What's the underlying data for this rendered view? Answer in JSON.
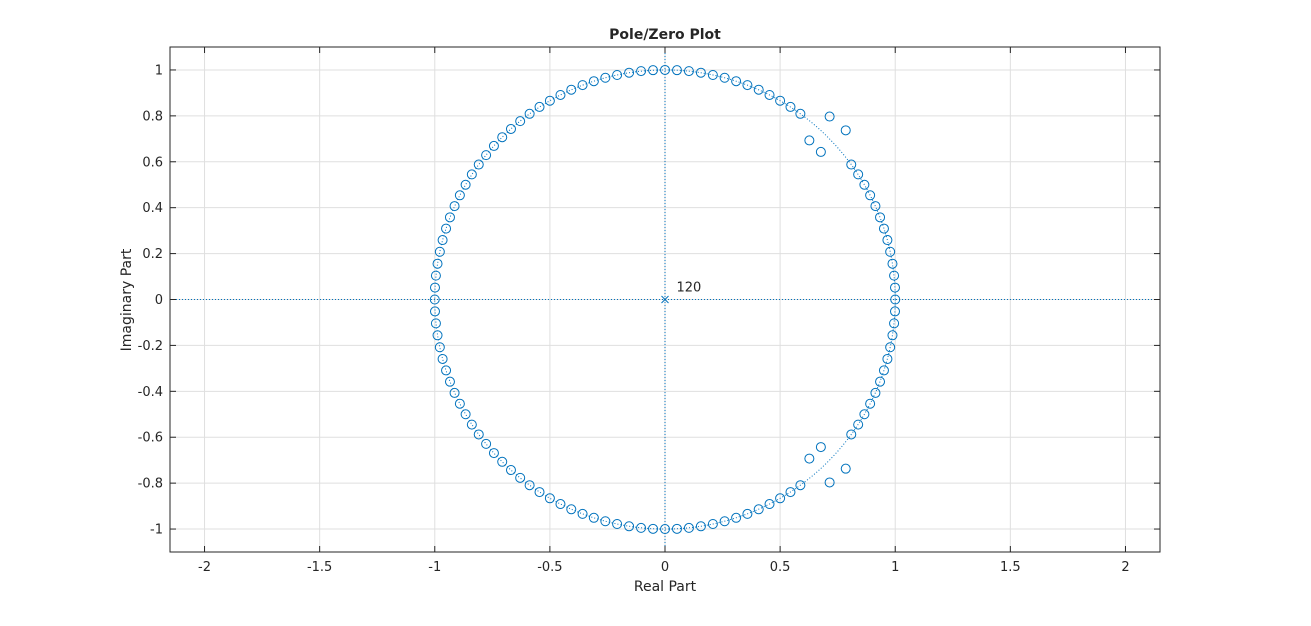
{
  "chart_data": {
    "type": "scatter",
    "title": "Pole/Zero Plot",
    "xlabel": "Real Part",
    "ylabel": "Imaginary Part",
    "xlim": [
      -2.15,
      2.15
    ],
    "ylim": [
      -1.1,
      1.1
    ],
    "xticks": [
      -2,
      -1.5,
      -1,
      -0.5,
      0,
      0.5,
      1,
      1.5,
      2
    ],
    "xtick_labels": [
      "-2",
      "-1.5",
      "-1",
      "-0.5",
      "0",
      "0.5",
      "1",
      "1.5",
      "2"
    ],
    "yticks": [
      -1,
      -0.8,
      -0.6,
      -0.4,
      -0.2,
      0,
      0.2,
      0.4,
      0.6,
      0.8,
      1
    ],
    "ytick_labels": [
      "-1",
      "-0.8",
      "-0.6",
      "-0.4",
      "-0.2",
      "0",
      "0.2",
      "0.4",
      "0.6",
      "0.8",
      "1"
    ],
    "grid": true,
    "unit_circle": true,
    "marker_color": "#0072BD",
    "series": [
      {
        "marker": "o",
        "points": [
          {
            "x": 0.052,
            "y": 0.999
          },
          {
            "x": 0.104,
            "y": 0.995
          },
          {
            "x": 0.156,
            "y": 0.988
          },
          {
            "x": 0.208,
            "y": 0.978
          },
          {
            "x": 0.259,
            "y": 0.966
          },
          {
            "x": 0.309,
            "y": 0.951
          },
          {
            "x": 0.358,
            "y": 0.934
          },
          {
            "x": 0.407,
            "y": 0.914
          },
          {
            "x": 0.454,
            "y": 0.891
          },
          {
            "x": 0.5,
            "y": 0.866
          },
          {
            "x": 0.545,
            "y": 0.839
          },
          {
            "x": 0.588,
            "y": 0.809
          },
          {
            "x": 0.809,
            "y": 0.588
          },
          {
            "x": 0.839,
            "y": 0.545
          },
          {
            "x": 0.866,
            "y": 0.5
          },
          {
            "x": 0.891,
            "y": 0.454
          },
          {
            "x": 0.914,
            "y": 0.407
          },
          {
            "x": 0.934,
            "y": 0.358
          },
          {
            "x": 0.951,
            "y": 0.309
          },
          {
            "x": 0.966,
            "y": 0.259
          },
          {
            "x": 0.978,
            "y": 0.208
          },
          {
            "x": 0.988,
            "y": 0.156
          },
          {
            "x": 0.995,
            "y": 0.104
          },
          {
            "x": 0.999,
            "y": 0.052
          },
          {
            "x": 1.0,
            "y": 0.0
          },
          {
            "x": 0.999,
            "y": -0.052
          },
          {
            "x": 0.995,
            "y": -0.104
          },
          {
            "x": 0.988,
            "y": -0.156
          },
          {
            "x": 0.978,
            "y": -0.208
          },
          {
            "x": 0.966,
            "y": -0.259
          },
          {
            "x": 0.951,
            "y": -0.309
          },
          {
            "x": 0.934,
            "y": -0.358
          },
          {
            "x": 0.914,
            "y": -0.407
          },
          {
            "x": 0.891,
            "y": -0.454
          },
          {
            "x": 0.866,
            "y": -0.5
          },
          {
            "x": 0.839,
            "y": -0.545
          },
          {
            "x": 0.809,
            "y": -0.588
          },
          {
            "x": 0.588,
            "y": -0.809
          },
          {
            "x": 0.545,
            "y": -0.839
          },
          {
            "x": 0.5,
            "y": -0.866
          },
          {
            "x": 0.454,
            "y": -0.891
          },
          {
            "x": 0.407,
            "y": -0.914
          },
          {
            "x": 0.358,
            "y": -0.934
          },
          {
            "x": 0.309,
            "y": -0.951
          },
          {
            "x": 0.259,
            "y": -0.966
          },
          {
            "x": 0.208,
            "y": -0.978
          },
          {
            "x": 0.156,
            "y": -0.988
          },
          {
            "x": 0.104,
            "y": -0.995
          },
          {
            "x": 0.052,
            "y": -0.999
          },
          {
            "x": 0.0,
            "y": -1.0
          },
          {
            "x": -0.052,
            "y": -0.999
          },
          {
            "x": -0.104,
            "y": -0.995
          },
          {
            "x": -0.156,
            "y": -0.988
          },
          {
            "x": -0.208,
            "y": -0.978
          },
          {
            "x": -0.259,
            "y": -0.966
          },
          {
            "x": -0.309,
            "y": -0.951
          },
          {
            "x": -0.358,
            "y": -0.934
          },
          {
            "x": -0.407,
            "y": -0.914
          },
          {
            "x": -0.454,
            "y": -0.891
          },
          {
            "x": -0.5,
            "y": -0.866
          },
          {
            "x": -0.545,
            "y": -0.839
          },
          {
            "x": -0.588,
            "y": -0.809
          },
          {
            "x": -0.629,
            "y": -0.777
          },
          {
            "x": -0.669,
            "y": -0.743
          },
          {
            "x": -0.707,
            "y": -0.707
          },
          {
            "x": -0.743,
            "y": -0.669
          },
          {
            "x": -0.777,
            "y": -0.629
          },
          {
            "x": -0.809,
            "y": -0.588
          },
          {
            "x": -0.839,
            "y": -0.545
          },
          {
            "x": -0.866,
            "y": -0.5
          },
          {
            "x": -0.891,
            "y": -0.454
          },
          {
            "x": -0.914,
            "y": -0.407
          },
          {
            "x": -0.934,
            "y": -0.358
          },
          {
            "x": -0.951,
            "y": -0.309
          },
          {
            "x": -0.966,
            "y": -0.259
          },
          {
            "x": -0.978,
            "y": -0.208
          },
          {
            "x": -0.988,
            "y": -0.156
          },
          {
            "x": -0.995,
            "y": -0.104
          },
          {
            "x": -0.999,
            "y": -0.052
          },
          {
            "x": -1.0,
            "y": 0.0
          },
          {
            "x": -0.999,
            "y": 0.052
          },
          {
            "x": -0.995,
            "y": 0.104
          },
          {
            "x": -0.988,
            "y": 0.156
          },
          {
            "x": -0.978,
            "y": 0.208
          },
          {
            "x": -0.966,
            "y": 0.259
          },
          {
            "x": -0.951,
            "y": 0.309
          },
          {
            "x": -0.934,
            "y": 0.358
          },
          {
            "x": -0.914,
            "y": 0.407
          },
          {
            "x": -0.891,
            "y": 0.454
          },
          {
            "x": -0.866,
            "y": 0.5
          },
          {
            "x": -0.839,
            "y": 0.545
          },
          {
            "x": -0.809,
            "y": 0.588
          },
          {
            "x": -0.777,
            "y": 0.629
          },
          {
            "x": -0.743,
            "y": 0.669
          },
          {
            "x": -0.707,
            "y": 0.707
          },
          {
            "x": -0.669,
            "y": 0.743
          },
          {
            "x": -0.629,
            "y": 0.777
          },
          {
            "x": -0.588,
            "y": 0.809
          },
          {
            "x": -0.545,
            "y": 0.839
          },
          {
            "x": -0.5,
            "y": 0.866
          },
          {
            "x": -0.454,
            "y": 0.891
          },
          {
            "x": -0.407,
            "y": 0.914
          },
          {
            "x": -0.358,
            "y": 0.934
          },
          {
            "x": -0.309,
            "y": 0.951
          },
          {
            "x": -0.259,
            "y": 0.966
          },
          {
            "x": -0.208,
            "y": 0.978
          },
          {
            "x": -0.156,
            "y": 0.988
          },
          {
            "x": -0.104,
            "y": 0.995
          },
          {
            "x": -0.052,
            "y": 0.999
          },
          {
            "x": 0.0,
            "y": 1.0
          },
          {
            "x": 0.715,
            "y": 0.797
          },
          {
            "x": 0.785,
            "y": 0.737
          },
          {
            "x": 0.627,
            "y": 0.693
          },
          {
            "x": 0.677,
            "y": 0.643
          },
          {
            "x": 0.715,
            "y": -0.797
          },
          {
            "x": 0.785,
            "y": -0.737
          },
          {
            "x": 0.627,
            "y": -0.693
          },
          {
            "x": 0.677,
            "y": -0.643
          }
        ]
      },
      {
        "marker": "x",
        "points": [
          {
            "x": 0,
            "y": 0
          }
        ]
      }
    ],
    "annotations": [
      {
        "text": "120",
        "x": 0.05,
        "y": 0.035
      }
    ]
  }
}
